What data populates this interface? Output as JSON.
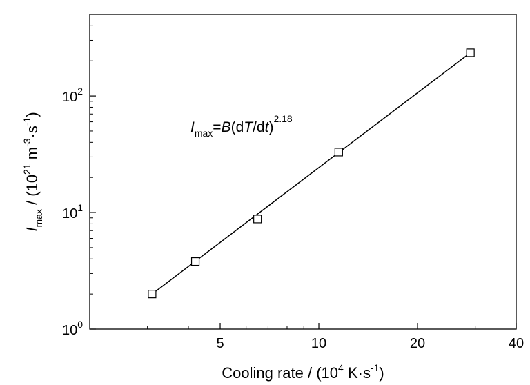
{
  "chart_data": {
    "type": "scatter",
    "x_scale": "log",
    "y_scale": "log",
    "xlim": [
      2,
      40
    ],
    "ylim": [
      1,
      500
    ],
    "x_ticks": [
      {
        "value": 5,
        "label": "5"
      },
      {
        "value": 10,
        "label": "10"
      },
      {
        "value": 20,
        "label": "20"
      },
      {
        "value": 40,
        "label": "40"
      }
    ],
    "x_minor_ticks": [
      3,
      4,
      6,
      7,
      8,
      9,
      30
    ],
    "y_ticks": [
      {
        "value": 1,
        "base": "10",
        "exp": "0"
      },
      {
        "value": 10,
        "base": "10",
        "exp": "1"
      },
      {
        "value": 100,
        "base": "10",
        "exp": "2"
      }
    ],
    "y_minor_ticks": [
      2,
      3,
      4,
      5,
      6,
      7,
      8,
      9,
      20,
      30,
      40,
      50,
      60,
      70,
      80,
      90,
      200,
      300,
      400
    ],
    "xlabel": {
      "prefix": "Cooling rate / (10",
      "exp": "4",
      "unit": " K·s",
      "unit_exp": "-1",
      "suffix": ")"
    },
    "ylabel": {
      "symbol": "I",
      "sub": "max",
      "prefix": " / (10",
      "exp1": "21",
      "unit1": " m",
      "exp2": "-3",
      "unit2": "·s",
      "exp3": "-1",
      "suffix": ")"
    },
    "annotation": {
      "symbol": "I",
      "sub": "max",
      "eq": "=",
      "B": "B",
      "open": "(d",
      "T": "T",
      "slash": "/d",
      "t": "t",
      "close": ")",
      "exp": "2.18"
    },
    "series": [
      {
        "marker": "open-square",
        "x": [
          3.1,
          4.2,
          6.5,
          11.5,
          29.0
        ],
        "y": [
          2.0,
          3.8,
          8.8,
          33.0,
          235.0
        ]
      }
    ],
    "fit": {
      "x": [
        3.1,
        29.0
      ],
      "y": [
        2.0,
        235.0
      ]
    },
    "grid": false,
    "legend": "none"
  }
}
